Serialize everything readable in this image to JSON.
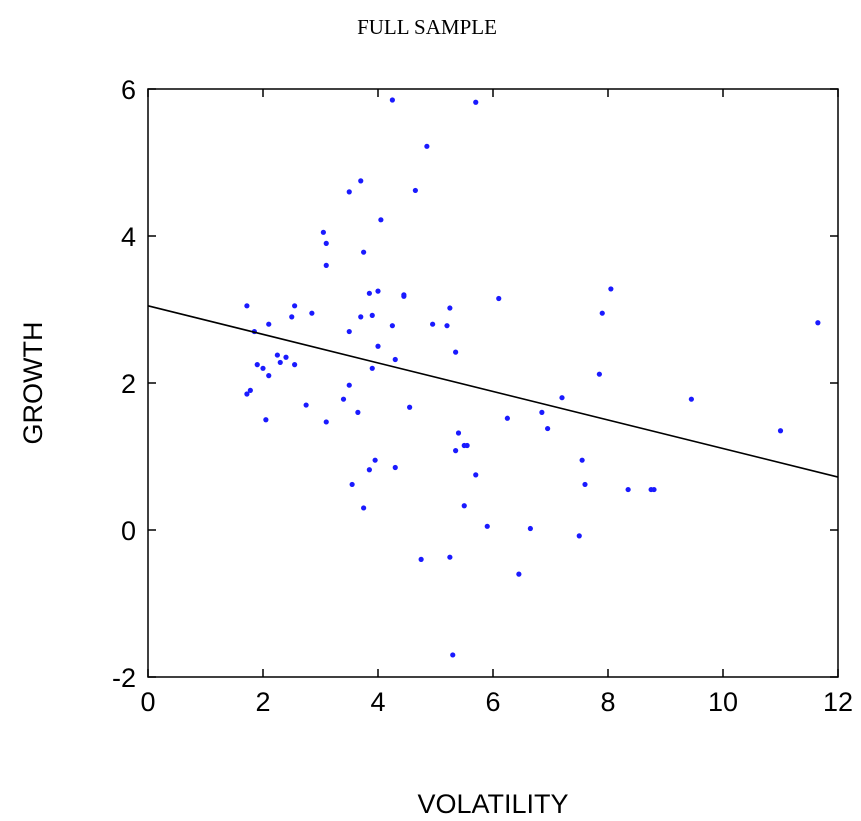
{
  "chart_data": {
    "type": "scatter",
    "title": "FULL SAMPLE",
    "xlabel": "VOLATILITY",
    "ylabel": "GROWTH",
    "xlim": [
      0,
      12
    ],
    "ylim": [
      -2,
      6
    ],
    "xticks": [
      0,
      2,
      4,
      6,
      8,
      10,
      12
    ],
    "yticks": [
      -2,
      0,
      2,
      4,
      6
    ],
    "grid": false,
    "legend": "none",
    "colors": {
      "points": "#1a1aff",
      "fit_line": "#000000"
    },
    "series": [
      {
        "points": [
          [
            1.72,
            3.05
          ],
          [
            1.72,
            1.85
          ],
          [
            1.78,
            1.9
          ],
          [
            1.85,
            2.7
          ],
          [
            1.9,
            2.25
          ],
          [
            2.0,
            2.2
          ],
          [
            2.05,
            1.5
          ],
          [
            2.1,
            2.1
          ],
          [
            2.1,
            2.8
          ],
          [
            2.25,
            2.38
          ],
          [
            2.3,
            2.28
          ],
          [
            2.4,
            2.35
          ],
          [
            2.5,
            2.9
          ],
          [
            2.55,
            3.05
          ],
          [
            2.55,
            2.25
          ],
          [
            2.75,
            1.7
          ],
          [
            2.85,
            2.95
          ],
          [
            3.05,
            4.05
          ],
          [
            3.1,
            3.9
          ],
          [
            3.1,
            3.6
          ],
          [
            3.1,
            1.47
          ],
          [
            3.4,
            1.78
          ],
          [
            3.5,
            1.97
          ],
          [
            3.5,
            2.7
          ],
          [
            3.5,
            4.6
          ],
          [
            3.55,
            0.62
          ],
          [
            3.65,
            1.6
          ],
          [
            3.7,
            2.9
          ],
          [
            3.7,
            4.75
          ],
          [
            3.75,
            3.78
          ],
          [
            3.75,
            0.3
          ],
          [
            3.85,
            3.22
          ],
          [
            3.85,
            0.82
          ],
          [
            3.9,
            2.92
          ],
          [
            3.9,
            2.2
          ],
          [
            3.95,
            0.95
          ],
          [
            4.0,
            2.5
          ],
          [
            4.0,
            3.25
          ],
          [
            4.05,
            4.22
          ],
          [
            4.25,
            5.85
          ],
          [
            4.25,
            2.78
          ],
          [
            4.3,
            2.32
          ],
          [
            4.3,
            0.85
          ],
          [
            4.45,
            3.18
          ],
          [
            4.45,
            3.2
          ],
          [
            4.55,
            1.67
          ],
          [
            4.65,
            4.62
          ],
          [
            4.75,
            -0.4
          ],
          [
            4.85,
            5.22
          ],
          [
            4.95,
            2.8
          ],
          [
            5.2,
            2.78
          ],
          [
            5.25,
            3.02
          ],
          [
            5.25,
            -0.37
          ],
          [
            5.3,
            -1.7
          ],
          [
            5.35,
            2.42
          ],
          [
            5.35,
            1.08
          ],
          [
            5.4,
            1.32
          ],
          [
            5.5,
            1.15
          ],
          [
            5.5,
            0.33
          ],
          [
            5.55,
            1.15
          ],
          [
            5.7,
            5.82
          ],
          [
            5.7,
            0.75
          ],
          [
            5.9,
            0.05
          ],
          [
            6.1,
            3.15
          ],
          [
            6.25,
            1.52
          ],
          [
            6.45,
            -0.6
          ],
          [
            6.65,
            0.02
          ],
          [
            6.85,
            1.6
          ],
          [
            6.95,
            1.38
          ],
          [
            7.2,
            1.8
          ],
          [
            7.5,
            -0.08
          ],
          [
            7.55,
            0.95
          ],
          [
            7.6,
            0.62
          ],
          [
            7.85,
            2.12
          ],
          [
            7.9,
            2.95
          ],
          [
            8.05,
            3.28
          ],
          [
            8.35,
            0.55
          ],
          [
            8.75,
            0.55
          ],
          [
            8.8,
            0.55
          ],
          [
            9.45,
            1.78
          ],
          [
            11.0,
            1.35
          ],
          [
            11.65,
            2.82
          ]
        ]
      }
    ],
    "fit_line": {
      "x": [
        0,
        12
      ],
      "y": [
        3.05,
        0.72
      ]
    }
  }
}
